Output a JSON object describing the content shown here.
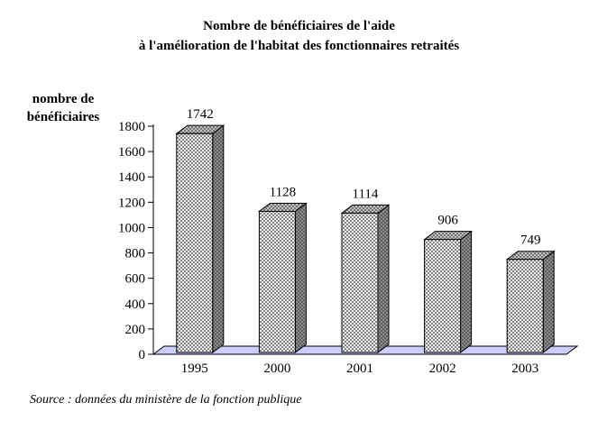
{
  "chart_data": {
    "type": "bar",
    "title_line1": "Nombre de bénéficiaires de l'aide",
    "title_line2": "à l'amélioration de l'habitat des fonctionnaires retraités",
    "ylabel_line1": "nombre de",
    "ylabel_line2": "bénéficiaires",
    "categories": [
      "1995",
      "2000",
      "2001",
      "2002",
      "2003"
    ],
    "values": [
      1742,
      1128,
      1114,
      906,
      749
    ],
    "ylim": [
      0,
      1800
    ],
    "ytick_step": 200,
    "grid": false,
    "legend": "none",
    "source": "Source : données du ministère de la fonction publique",
    "colors": {
      "floor": "#ccccff",
      "bar_front_base": "#ededed",
      "bar_side_base": "#8c8c8c",
      "bar_top_base": "#c2c2c2",
      "dot": "#3a3a3a",
      "outline": "#000000"
    }
  }
}
